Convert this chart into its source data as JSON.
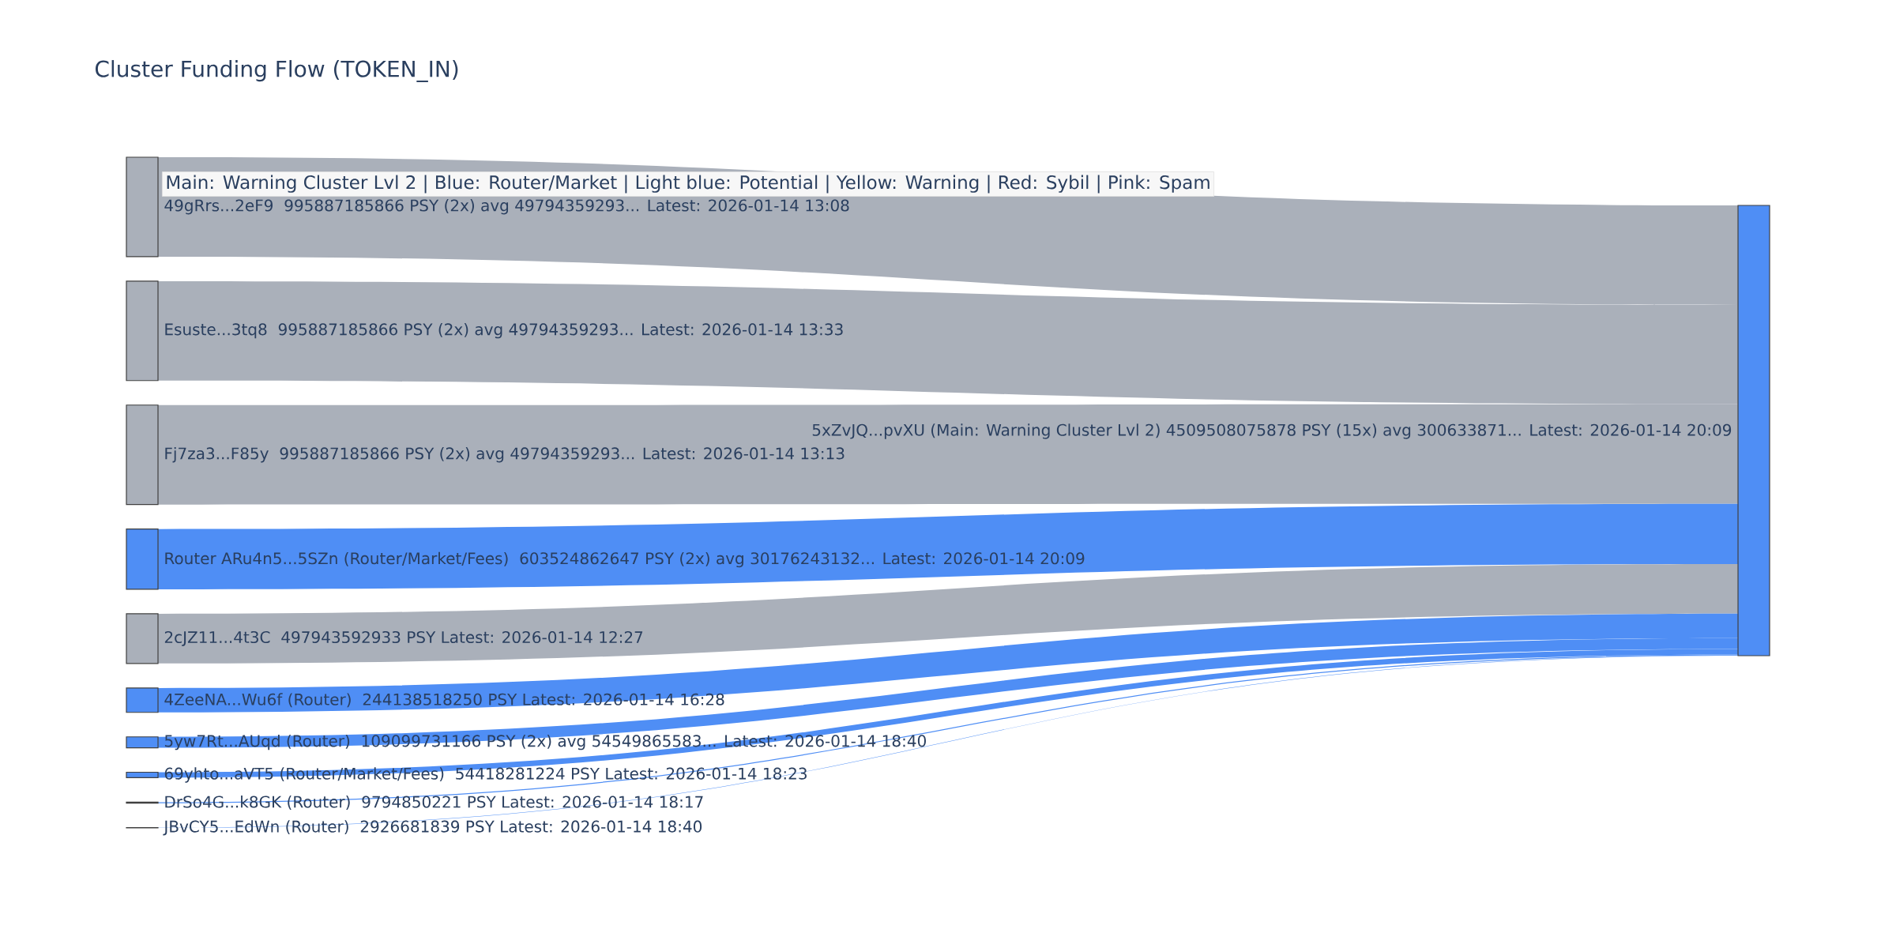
{
  "chart_data": {
    "type": "other",
    "title": "Cluster Funding Flow (TOKEN_IN)",
    "categories": [
      "49gRrs...2eF9",
      "Esuste...3tq8",
      "Fj7za3...F85y",
      "Router ARu4n5...5SZn (Router/Market/Fees)",
      "2cJZ11...4t3C",
      "4ZeeNA...Wu6f (Router)",
      "5yw7Rt...AUqd (Router)",
      "69yhto...aVT5 (Router/Market/Fees)",
      "DrSo4G...k8GK (Router)",
      "JBvCY5...EdWn (Router)"
    ],
    "values": [
      995887185866,
      995887185866,
      995887185866,
      603524862647,
      497943592933,
      244138518250,
      109099731166,
      54418281224,
      9794850221,
      2926681839
    ],
    "value_labels": [
      "995887185866 PSY (2x) avg 49794359293... Latest: 2026-01-14 13:08",
      "995887185866 PSY (2x) avg 49794359293... Latest: 2026-01-14 13:33",
      "995887185866 PSY (2x) avg 49794359293... Latest: 2026-01-14 13:13",
      "603524862647 PSY (2x) avg 30176243132... Latest: 2026-01-14 20:09",
      "497943592933 PSY Latest: 2026-01-14 12:27",
      "244138518250 PSY Latest: 2026-01-14 16:28",
      "109099731166 PSY (2x) avg 54549865583... Latest: 2026-01-14 18:40",
      "54418281224 PSY Latest: 2026-01-14 18:23",
      "9794850221 PSY Latest: 2026-01-14 18:17",
      "2926681839 PSY Latest: 2026-01-14 18:40"
    ],
    "colors": [
      "#aab0ba",
      "#aab0ba",
      "#aab0ba",
      "#4f8ef5",
      "#aab0ba",
      "#4f8ef5",
      "#4f8ef5",
      "#4f8ef5",
      "#4f8ef5",
      "#4f8ef5"
    ],
    "color": "#4f8ef5",
    "annotations": [
      "Main: Warning Cluster Lvl 2  |  Blue: Router/Market | Light blue: Potential | Yellow: Warning | Red: Sybil | Pink: Spam",
      "5xZvJQ...pvXU (Main: Warning Cluster Lvl 2) 4509508075878 PSY (15x) avg 300633871... Latest: 2026-01-14 20:09"
    ]
  }
}
